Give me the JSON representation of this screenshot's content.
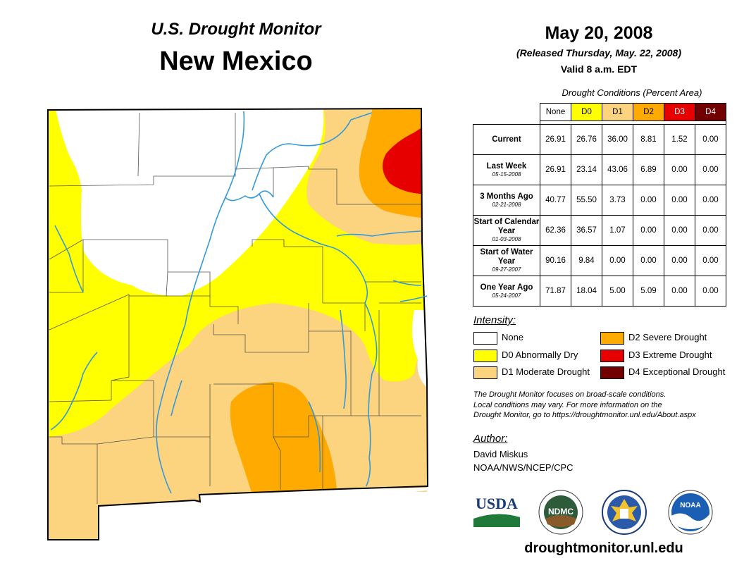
{
  "header": {
    "subtitle": "U.S. Drought Monitor",
    "state": "New Mexico",
    "date": "May 20, 2008",
    "released": "(Released Thursday, May. 22, 2008)",
    "valid": "Valid 8 a.m. EDT"
  },
  "table": {
    "caption": "Drought Conditions (Percent Area)",
    "columns": [
      "None",
      "D0",
      "D1",
      "D2",
      "D3",
      "D4"
    ],
    "rows": [
      {
        "label": "Current",
        "date": "",
        "values": [
          "26.91",
          "26.76",
          "36.00",
          "8.81",
          "1.52",
          "0.00"
        ]
      },
      {
        "label": "Last Week",
        "date": "05-15-2008",
        "values": [
          "26.91",
          "23.14",
          "43.06",
          "6.89",
          "0.00",
          "0.00"
        ]
      },
      {
        "label": "3 Months Ago",
        "date": "02-21-2008",
        "values": [
          "40.77",
          "55.50",
          "3.73",
          "0.00",
          "0.00",
          "0.00"
        ]
      },
      {
        "label": "Start of Calendar Year",
        "date": "01-03-2008",
        "values": [
          "62.36",
          "36.57",
          "1.07",
          "0.00",
          "0.00",
          "0.00"
        ]
      },
      {
        "label": "Start of Water Year",
        "date": "09-27-2007",
        "values": [
          "90.16",
          "9.84",
          "0.00",
          "0.00",
          "0.00",
          "0.00"
        ]
      },
      {
        "label": "One Year Ago",
        "date": "05-24-2007",
        "values": [
          "71.87",
          "18.04",
          "5.00",
          "5.09",
          "0.00",
          "0.00"
        ]
      }
    ]
  },
  "legend": {
    "title": "Intensity:",
    "items": [
      {
        "label": "None",
        "color": "#ffffff"
      },
      {
        "label": "D0 Abnormally Dry",
        "color": "#ffff00"
      },
      {
        "label": "D1 Moderate Drought",
        "color": "#fcd37f"
      },
      {
        "label": "D2 Severe Drought",
        "color": "#ffaa00"
      },
      {
        "label": "D3 Extreme Drought",
        "color": "#e60000"
      },
      {
        "label": "D4 Exceptional Drought",
        "color": "#730000"
      }
    ]
  },
  "note": {
    "line1": "The Drought Monitor focuses on broad-scale conditions.",
    "line2": "Local conditions may vary. For more information on the",
    "line3": "Drought Monitor, go to https://droughtmonitor.unl.edu/About.aspx"
  },
  "author": {
    "label": "Author:",
    "name": "David Miskus",
    "org": "NOAA/NWS/NCEP/CPC"
  },
  "logos": {
    "usda": "USDA",
    "ndmc": "NDMC",
    "noaa": "NOAA"
  },
  "footer": {
    "url": "droughtmonitor.unl.edu"
  },
  "colors": {
    "none": "#ffffff",
    "d0": "#ffff00",
    "d1": "#fcd37f",
    "d2": "#ffaa00",
    "d3": "#e60000",
    "d4": "#730000",
    "river": "#3399dd",
    "county": "#555555"
  }
}
